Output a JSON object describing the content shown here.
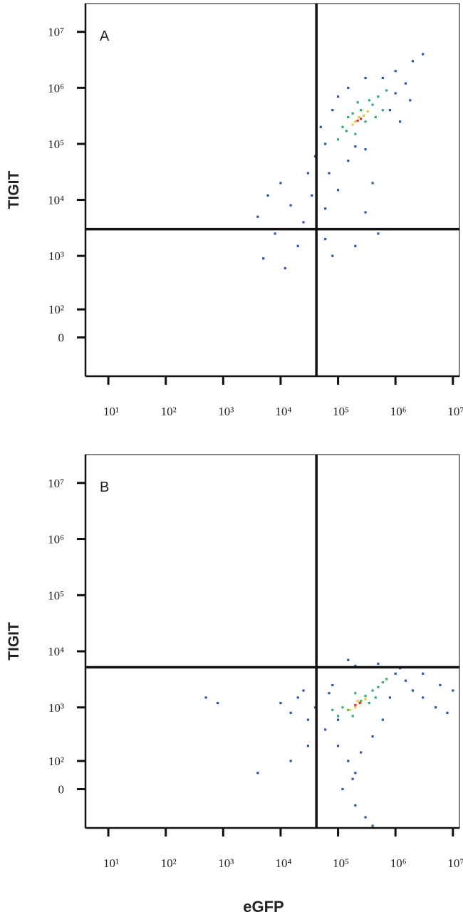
{
  "chart_data": [
    {
      "type": "scatter",
      "label": "A",
      "y_label": "TIGIT",
      "xscale": "log",
      "yscale": "biexponential",
      "xlim": [
        4,
        13000000
      ],
      "ylim": [
        -165,
        32000000
      ],
      "xticks": [
        {
          "value": 10,
          "label": "10¹"
        },
        {
          "value": 100,
          "label": "10²"
        },
        {
          "value": 1000,
          "label": "10³"
        },
        {
          "value": 10000,
          "label": "10⁴"
        },
        {
          "value": 100000,
          "label": "10⁵"
        },
        {
          "value": 1000000,
          "label": "10⁶"
        },
        {
          "value": 10000000,
          "label": "10⁷"
        }
      ],
      "yticks": [
        0,
        {
          "value": 100,
          "label": "10²"
        },
        {
          "value": 1000,
          "label": "10³"
        },
        {
          "value": 10000,
          "label": "10⁴"
        },
        {
          "value": 100000,
          "label": "10⁵"
        },
        {
          "value": 1000000,
          "label": "10⁶"
        },
        {
          "value": 10000000,
          "label": "10⁷"
        }
      ],
      "gates": {
        "x": 42000,
        "y": 3000
      },
      "series": [
        {
          "color": "#2f55a8",
          "x": [
            4000,
            6000,
            10000,
            15000,
            20000,
            30000,
            8000,
            5000,
            25000,
            60000,
            80000,
            120000,
            200000,
            300000,
            500000,
            100000,
            70000,
            150000,
            400000,
            60000,
            50000,
            80000,
            100000,
            150000,
            600000,
            1000000,
            1500000,
            800000,
            1000000,
            2000000,
            3000000,
            1200000,
            300000,
            200000,
            40000,
            300000,
            1800000,
            60000,
            12000,
            35000
          ],
          "values": [
            5000,
            12000,
            20000,
            8000,
            1500,
            30000,
            2500,
            900,
            4000,
            2000,
            1000,
            3000,
            1500,
            6000,
            2500,
            15000,
            30000,
            50000,
            20000,
            100000,
            200000,
            400000,
            700000,
            1000000,
            1500000,
            2000000,
            1200000,
            400000,
            800000,
            3000000,
            4000000,
            250000,
            80000,
            90000,
            60000,
            1500000,
            600000,
            7000,
            600,
            12000
          ]
        },
        {
          "color": "#2fae6a",
          "x": [
            120000,
            150000,
            200000,
            250000,
            300000,
            400000,
            500000,
            350000,
            100000,
            600000,
            220000,
            450000,
            180000,
            700000,
            140000
          ],
          "values": [
            200000,
            300000,
            150000,
            400000,
            250000,
            500000,
            700000,
            600000,
            120000,
            400000,
            550000,
            300000,
            350000,
            900000,
            170000
          ]
        },
        {
          "color": "#e8c93a",
          "x": [
            200000,
            280000,
            230000,
            330000,
            180000
          ],
          "values": [
            250000,
            320000,
            300000,
            380000,
            220000
          ]
        },
        {
          "color": "#e0352b",
          "x": [
            250000,
            220000
          ],
          "values": [
            280000,
            260000
          ]
        }
      ]
    },
    {
      "type": "scatter",
      "label": "B",
      "y_label": "TIGIT",
      "x_label": "eGFP",
      "xscale": "log",
      "yscale": "biexponential",
      "xlim": [
        4,
        13000000
      ],
      "ylim": [
        -165,
        32000000
      ],
      "xticks": [
        {
          "value": 10,
          "label": "10¹"
        },
        {
          "value": 100,
          "label": "10²"
        },
        {
          "value": 1000,
          "label": "10³"
        },
        {
          "value": 10000,
          "label": "10⁴"
        },
        {
          "value": 100000,
          "label": "10⁵"
        },
        {
          "value": 1000000,
          "label": "10⁶"
        },
        {
          "value": 10000000,
          "label": "10⁷"
        }
      ],
      "yticks": [
        0,
        {
          "value": 100,
          "label": "10²"
        },
        {
          "value": 1000,
          "label": "10³"
        },
        {
          "value": 10000,
          "label": "10⁴"
        },
        {
          "value": 100000,
          "label": "10⁵"
        },
        {
          "value": 1000000,
          "label": "10⁶"
        },
        {
          "value": 10000000,
          "label": "10⁷"
        }
      ],
      "gates": {
        "x": 42000,
        "y": 5200
      },
      "series": [
        {
          "color": "#2f55a8",
          "x": [
            500,
            800,
            10000,
            15000,
            20000,
            30000,
            25000,
            40000,
            60000,
            80000,
            100000,
            150000,
            200000,
            120000,
            200000,
            300000,
            180000,
            250000,
            400000,
            600000,
            800000,
            1000000,
            1500000,
            2000000,
            3000000,
            5000000,
            8000000,
            10000000,
            1200000,
            500000,
            200000,
            150000,
            30000,
            15000,
            4000,
            100000,
            70000,
            3000000,
            6000000,
            400000
          ],
          "values": [
            1500,
            1200,
            1200,
            800,
            1500,
            600,
            2000,
            1000,
            400,
            2500,
            200,
            100,
            50,
            0,
            -50,
            -100,
            30,
            150,
            300,
            600,
            1500,
            4000,
            3000,
            2000,
            1500,
            1000,
            800,
            2000,
            5000,
            6000,
            5500,
            7000,
            200,
            100,
            50,
            600,
            1800,
            4000,
            2500,
            -150
          ]
        },
        {
          "color": "#2fae6a",
          "x": [
            100000,
            150000,
            200000,
            250000,
            300000,
            400000,
            500000,
            600000,
            120000,
            350000,
            200000,
            80000,
            700000,
            450000,
            180000
          ],
          "values": [
            700,
            900,
            1100,
            1300,
            1600,
            2000,
            2300,
            2800,
            1000,
            1200,
            1800,
            900,
            3200,
            1500,
            700
          ]
        },
        {
          "color": "#e8c93a",
          "x": [
            160000,
            200000,
            250000,
            300000,
            220000
          ],
          "values": [
            900,
            1000,
            1200,
            1400,
            1300
          ]
        },
        {
          "color": "#e0352b",
          "x": [
            200000,
            240000
          ],
          "values": [
            1100,
            1200
          ]
        }
      ]
    }
  ]
}
